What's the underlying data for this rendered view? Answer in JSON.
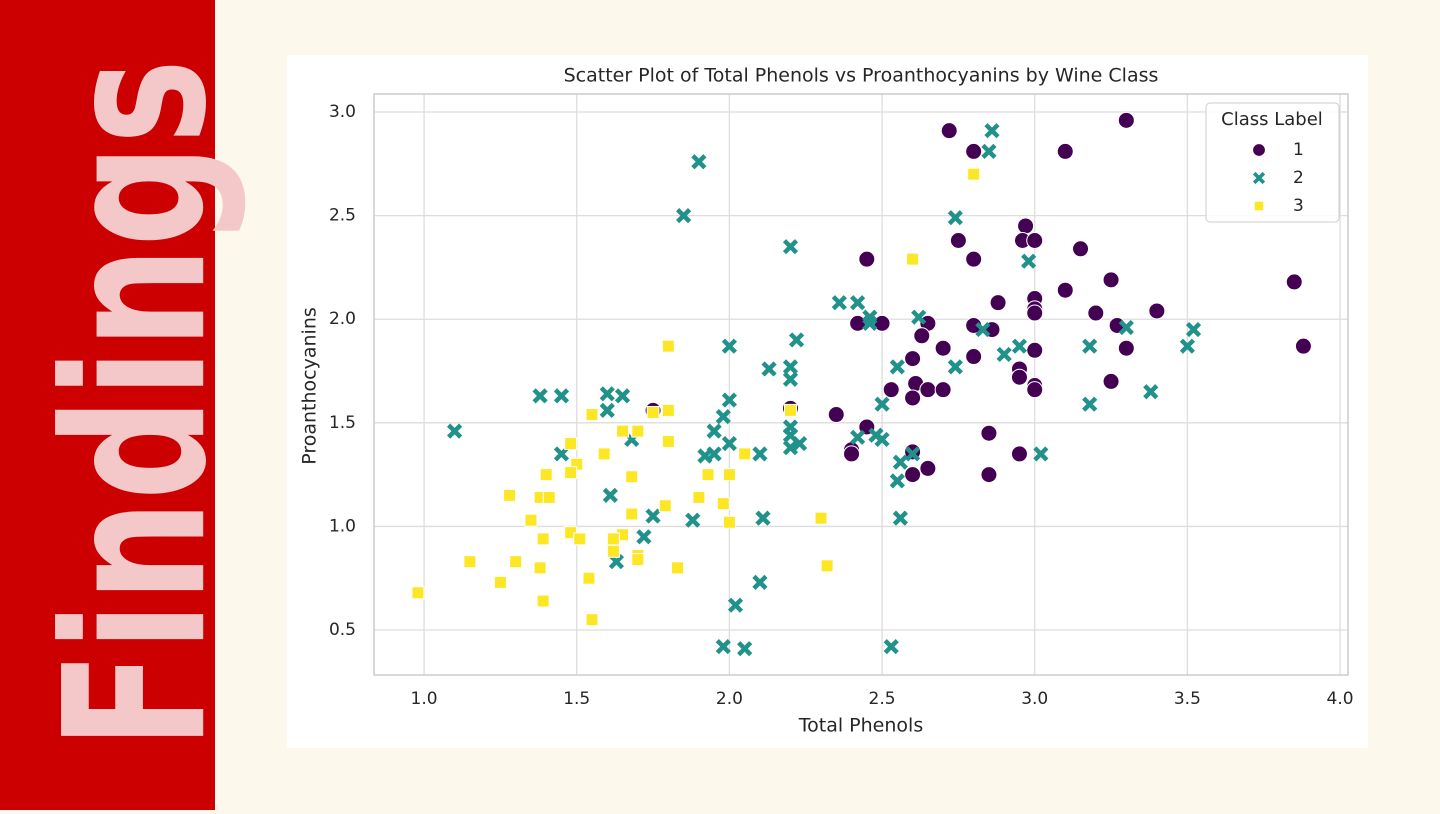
{
  "sidebar": {
    "title": "Findings"
  },
  "chart_data": {
    "type": "scatter",
    "title": "Scatter Plot of Total Phenols vs Proanthocyanins by Wine Class",
    "x_label": "Total Phenols",
    "y_label": "Proanthocyanins",
    "xlim": [
      0.836,
      4.026
    ],
    "ylim": [
      0.283,
      3.087
    ],
    "xticks": [
      {
        "value": 1,
        "label": "1.0"
      },
      {
        "value": 1.5,
        "label": "1.5"
      },
      {
        "value": 2,
        "label": "2.0"
      },
      {
        "value": 2.5,
        "label": "2.5"
      },
      {
        "value": 3,
        "label": "3.0"
      },
      {
        "value": 3.5,
        "label": "3.5"
      },
      {
        "value": 4,
        "label": "4.0"
      }
    ],
    "yticks": [
      {
        "value": 0.5,
        "label": "0.5"
      },
      {
        "value": 1,
        "label": "1.0"
      },
      {
        "value": 1.5,
        "label": "1.5"
      },
      {
        "value": 2,
        "label": "2.0"
      },
      {
        "value": 2.5,
        "label": "2.5"
      },
      {
        "value": 3,
        "label": "3.0"
      }
    ],
    "grid": true,
    "legend_title": "Class Label",
    "legend_position": "upper right",
    "series": [
      {
        "name": "1",
        "color": "#440154",
        "marker": "circle",
        "x": [
          2.72,
          3.3,
          2.8,
          3.1,
          2.97,
          2.75,
          2.96,
          3.0,
          3.15,
          2.45,
          2.8,
          3.25,
          3.85,
          3.1,
          3.0,
          2.88,
          3.0,
          3.4,
          3.2,
          3.0,
          2.5,
          2.42,
          2.8,
          2.65,
          3.27,
          2.86,
          2.63,
          3.88,
          2.7,
          3.3,
          3.0,
          2.8,
          2.6,
          2.95,
          2.95,
          3.25,
          2.61,
          3.0,
          3.0,
          2.65,
          2.7,
          2.53,
          2.6,
          2.2,
          2.35,
          2.45,
          2.85,
          2.4,
          2.6,
          2.4,
          2.95,
          2.65,
          2.6,
          2.85,
          1.75
        ],
        "y": [
          2.91,
          2.96,
          2.81,
          2.81,
          2.45,
          2.38,
          2.38,
          2.38,
          2.34,
          2.29,
          2.29,
          2.19,
          2.18,
          2.14,
          2.1,
          2.08,
          2.05,
          2.04,
          2.03,
          2.03,
          1.98,
          1.98,
          1.97,
          1.98,
          1.97,
          1.95,
          1.92,
          1.87,
          1.86,
          1.86,
          1.85,
          1.82,
          1.81,
          1.76,
          1.72,
          1.7,
          1.69,
          1.68,
          1.66,
          1.66,
          1.66,
          1.66,
          1.62,
          1.57,
          1.54,
          1.48,
          1.45,
          1.37,
          1.36,
          1.35,
          1.35,
          1.28,
          1.25,
          1.25,
          1.56
        ]
      },
      {
        "name": "2",
        "color": "#21918c",
        "marker": "x",
        "x": [
          2.86,
          2.85,
          1.9,
          1.85,
          2.74,
          2.2,
          2.98,
          2.36,
          2.42,
          2.46,
          2.62,
          2.46,
          3.3,
          2.83,
          3.52,
          2.22,
          2.0,
          2.95,
          3.18,
          3.5,
          2.9,
          2.2,
          2.55,
          2.74,
          2.13,
          2.2,
          3.38,
          1.38,
          1.45,
          1.6,
          1.65,
          2.0,
          2.5,
          3.18,
          1.6,
          1.98,
          2.2,
          1.1,
          1.95,
          2.2,
          2.48,
          2.42,
          2.5,
          1.68,
          2.0,
          2.23,
          2.2,
          1.45,
          1.92,
          1.95,
          2.1,
          2.6,
          3.02,
          2.56,
          2.55,
          1.61,
          1.75,
          2.11,
          2.56,
          1.88,
          1.72,
          1.63,
          2.1,
          2.02,
          1.98,
          2.05,
          2.53
        ],
        "y": [
          2.91,
          2.81,
          2.76,
          2.5,
          2.49,
          2.35,
          2.28,
          2.08,
          2.08,
          2.01,
          2.01,
          1.98,
          1.96,
          1.95,
          1.95,
          1.9,
          1.87,
          1.87,
          1.87,
          1.87,
          1.83,
          1.77,
          1.77,
          1.77,
          1.76,
          1.71,
          1.65,
          1.63,
          1.63,
          1.64,
          1.63,
          1.61,
          1.59,
          1.59,
          1.56,
          1.53,
          1.48,
          1.46,
          1.46,
          1.44,
          1.44,
          1.43,
          1.42,
          1.42,
          1.4,
          1.4,
          1.38,
          1.35,
          1.34,
          1.35,
          1.35,
          1.35,
          1.35,
          1.31,
          1.22,
          1.15,
          1.05,
          1.04,
          1.04,
          1.03,
          0.95,
          0.83,
          0.73,
          0.62,
          0.42,
          0.41,
          0.42
        ]
      },
      {
        "name": "3",
        "color": "#fde725",
        "marker": "square",
        "x": [
          2.8,
          2.6,
          1.8,
          1.8,
          1.75,
          1.55,
          2.2,
          1.65,
          1.7,
          1.8,
          1.48,
          1.59,
          1.5,
          1.48,
          1.4,
          1.93,
          2.0,
          1.68,
          1.28,
          1.38,
          1.41,
          1.9,
          1.98,
          1.79,
          1.68,
          2.3,
          1.35,
          2.0,
          1.48,
          1.65,
          1.39,
          1.51,
          1.62,
          1.62,
          1.7,
          1.7,
          1.15,
          1.3,
          2.32,
          1.38,
          1.83,
          1.54,
          1.25,
          0.98,
          1.39,
          1.55,
          2.05
        ],
        "y": [
          2.7,
          2.29,
          1.87,
          1.56,
          1.55,
          1.54,
          1.56,
          1.46,
          1.46,
          1.41,
          1.4,
          1.35,
          1.3,
          1.26,
          1.25,
          1.25,
          1.25,
          1.24,
          1.15,
          1.14,
          1.14,
          1.14,
          1.11,
          1.1,
          1.06,
          1.04,
          1.03,
          1.02,
          0.97,
          0.96,
          0.94,
          0.94,
          0.94,
          0.88,
          0.86,
          0.84,
          0.83,
          0.83,
          0.81,
          0.8,
          0.8,
          0.75,
          0.73,
          0.68,
          0.64,
          0.55,
          1.35
        ]
      }
    ]
  }
}
